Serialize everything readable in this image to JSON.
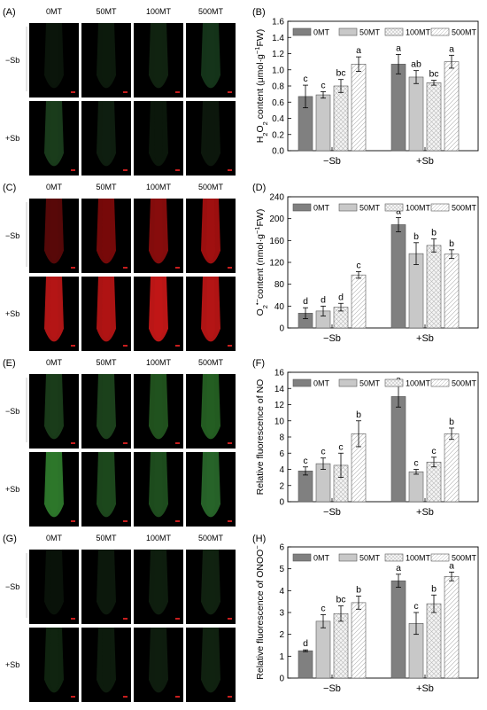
{
  "figure": {
    "rows": [
      {
        "micro_label": "(A)",
        "micro_colors": {
          "-Sb": [
            "#0b150b",
            "#0d1a0d",
            "#112411",
            "#15361a"
          ],
          "+Sb": [
            "#1a3d1c",
            "#0f1f10",
            "#0c180c",
            "#0d180d"
          ]
        },
        "chart_label": "(B)",
        "stain": "green"
      },
      {
        "micro_label": "(C)",
        "micro_colors": {
          "-Sb": [
            "#5a0808",
            "#7a0a0a",
            "#8a0d0d",
            "#a31010"
          ],
          "+Sb": [
            "#b81616",
            "#b31414",
            "#c41717",
            "#b81515"
          ]
        },
        "chart_label": "(D)",
        "stain": "red"
      },
      {
        "micro_label": "(E)",
        "micro_colors": {
          "-Sb": [
            "#1a3d1a",
            "#1c421c",
            "#22541f",
            "#256023"
          ],
          "+Sb": [
            "#2e7a2c",
            "#1d4a1d",
            "#1f4f1f",
            "#28662a"
          ]
        },
        "chart_label": "(F)",
        "stain": "green"
      },
      {
        "micro_label": "(G)",
        "micro_colors": {
          "-Sb": [
            "#0a130a",
            "#0d190d",
            "#0f1f0f",
            "#112311"
          ],
          "+Sb": [
            "#102510",
            "#0e1c0e",
            "#0f1e0f",
            "#112311"
          ]
        },
        "chart_label": "(H)",
        "stain": "green"
      }
    ],
    "micro_col_labels": [
      "0MT",
      "50MT",
      "100MT",
      "500MT"
    ],
    "micro_row_labels": [
      "−Sb",
      "+Sb"
    ],
    "legend_labels": [
      "0MT",
      "50MT",
      "100MT",
      "500MT"
    ],
    "group_labels": [
      "−Sb",
      "+Sb"
    ],
    "bar_colors": [
      "#808080",
      "#c8c8c8",
      "#f2f2f2",
      "#ffffff"
    ],
    "bar_patterns": [
      "solid",
      "solid",
      "crosshatch",
      "diagonal"
    ]
  },
  "chart_data": [
    {
      "type": "bar",
      "panel": "(B)",
      "ylabel": "H2O2 content (μmol·g⁻¹FW)",
      "ylabel_parts": {
        "pre": "H",
        "sub1": "2",
        "mid": "O",
        "sub2": "2",
        "post": " content (μmol·g",
        "sup": "−1",
        "end": "FW)"
      },
      "ylim": [
        0,
        1.6
      ],
      "yticks": [
        "0.0",
        "0.2",
        "0.4",
        "0.6",
        "0.8",
        "1.0",
        "1.2",
        "1.4",
        "1.6"
      ],
      "categories": [
        "−Sb",
        "+Sb"
      ],
      "series": [
        {
          "name": "0MT",
          "values": [
            0.67,
            1.07
          ],
          "errors": [
            0.14,
            0.12
          ],
          "letters": [
            "c",
            "a"
          ]
        },
        {
          "name": "50MT",
          "values": [
            0.69,
            0.91
          ],
          "errors": [
            0.04,
            0.08
          ],
          "letters": [
            "c",
            "ab"
          ]
        },
        {
          "name": "100MT",
          "values": [
            0.8,
            0.84
          ],
          "errors": [
            0.08,
            0.03
          ],
          "letters": [
            "bc",
            "bc"
          ]
        },
        {
          "name": "500MT",
          "values": [
            1.07,
            1.1
          ],
          "errors": [
            0.09,
            0.08
          ],
          "letters": [
            "a",
            "a"
          ]
        }
      ]
    },
    {
      "type": "bar",
      "panel": "(D)",
      "ylabel": "O2•− content (nmol·g⁻¹FW)",
      "ylabel_parts": {
        "pre": "O",
        "sub1": "2",
        "sup0": "•−",
        "post": "content (nmol·g",
        "sup": "−1",
        "end": "FW)"
      },
      "ylim": [
        0,
        240
      ],
      "yticks": [
        "0",
        "40",
        "80",
        "120",
        "160",
        "200",
        "240"
      ],
      "categories": [
        "−Sb",
        "+Sb"
      ],
      "series": [
        {
          "name": "0MT",
          "values": [
            27,
            189
          ],
          "errors": [
            10,
            13
          ],
          "letters": [
            "d",
            "a"
          ]
        },
        {
          "name": "50MT",
          "values": [
            31,
            136
          ],
          "errors": [
            9,
            20
          ],
          "letters": [
            "d",
            "b"
          ]
        },
        {
          "name": "100MT",
          "values": [
            38,
            151
          ],
          "errors": [
            7,
            12
          ],
          "letters": [
            "d",
            "b"
          ]
        },
        {
          "name": "500MT",
          "values": [
            97,
            135
          ],
          "errors": [
            6,
            8
          ],
          "letters": [
            "c",
            "b"
          ]
        }
      ]
    },
    {
      "type": "bar",
      "panel": "(F)",
      "ylabel": "Relative fluorescence of NO",
      "ylim": [
        0,
        16
      ],
      "yticks": [
        "0",
        "2",
        "4",
        "6",
        "8",
        "10",
        "12",
        "14",
        "16"
      ],
      "categories": [
        "−Sb",
        "+Sb"
      ],
      "series": [
        {
          "name": "0MT",
          "values": [
            3.8,
            13.0
          ],
          "errors": [
            0.5,
            1.3
          ],
          "letters": [
            "c",
            "a"
          ]
        },
        {
          "name": "50MT",
          "values": [
            4.7,
            3.7
          ],
          "errors": [
            0.7,
            0.3
          ],
          "letters": [
            "c",
            "c"
          ]
        },
        {
          "name": "100MT",
          "values": [
            4.5,
            4.9
          ],
          "errors": [
            1.5,
            0.6
          ],
          "letters": [
            "c",
            "c"
          ]
        },
        {
          "name": "500MT",
          "values": [
            8.4,
            8.4
          ],
          "errors": [
            1.6,
            0.7
          ],
          "letters": [
            "b",
            "b"
          ]
        }
      ]
    },
    {
      "type": "bar",
      "panel": "(H)",
      "ylabel": "Relative fluorescence of ONOO−",
      "ylabel_parts": {
        "pre": "Relative fluorescence of ONOO",
        "sup": "−"
      },
      "ylim": [
        0,
        6
      ],
      "yticks": [
        "0",
        "1",
        "2",
        "3",
        "4",
        "5",
        "6"
      ],
      "categories": [
        "−Sb",
        "+Sb"
      ],
      "series": [
        {
          "name": "0MT",
          "values": [
            1.25,
            4.45
          ],
          "errors": [
            0.04,
            0.3
          ],
          "letters": [
            "d",
            "a"
          ]
        },
        {
          "name": "50MT",
          "values": [
            2.6,
            2.5
          ],
          "errors": [
            0.3,
            0.5
          ],
          "letters": [
            "c",
            "c"
          ]
        },
        {
          "name": "100MT",
          "values": [
            2.95,
            3.4
          ],
          "errors": [
            0.35,
            0.4
          ],
          "letters": [
            "bc",
            "b"
          ]
        },
        {
          "name": "500MT",
          "values": [
            3.45,
            4.65
          ],
          "errors": [
            0.3,
            0.2
          ],
          "letters": [
            "b",
            "a"
          ]
        }
      ]
    }
  ]
}
